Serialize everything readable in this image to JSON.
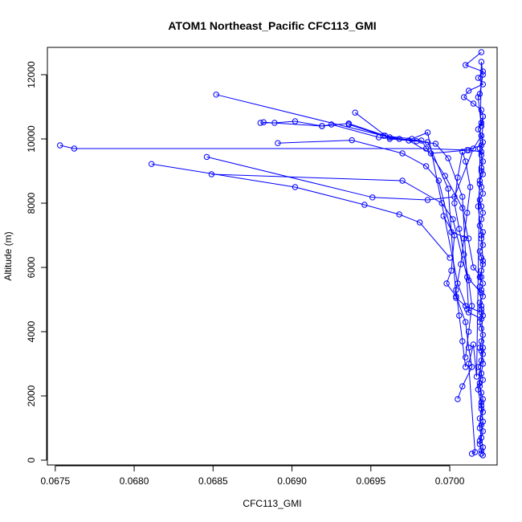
{
  "chart_data": {
    "type": "line",
    "title": "ATOM1 Northeast_Pacific CFC113_GMI",
    "xlabel": "CFC113_GMI",
    "ylabel": "Altitude (m)",
    "xlim": [
      0.06745,
      0.0703
    ],
    "ylim": [
      -150,
      12850
    ],
    "xticks": [
      0.0675,
      0.068,
      0.0685,
      0.069,
      0.0695,
      0.07
    ],
    "xtick_labels": [
      "0.0675",
      "0.0680",
      "0.0685",
      "0.0690",
      "0.0695",
      "0.0700"
    ],
    "yticks": [
      0,
      2000,
      4000,
      6000,
      8000,
      10000,
      12000
    ],
    "ytick_labels": [
      "0",
      "2000",
      "4000",
      "6000",
      "8000",
      "10000",
      "12000"
    ],
    "grid": false,
    "legend": "none",
    "series_color": "#0000ff",
    "marker": "open-circle",
    "series": [
      {
        "x": [
          0.07021,
          0.0702,
          0.07019,
          0.0702,
          0.07021,
          0.0702,
          0.07019,
          0.07021,
          0.0702,
          0.07021,
          0.0702,
          0.07019,
          0.07021,
          0.0702,
          0.07018,
          0.0702,
          0.07021,
          0.07019,
          0.0702,
          0.07021,
          0.0702,
          0.07019,
          0.07021,
          0.0702,
          0.07019,
          0.07021,
          0.0702,
          0.07021,
          0.07019,
          0.0702,
          0.07021,
          0.0702,
          0.07019,
          0.07021,
          0.0702,
          0.07021,
          0.07019,
          0.0702,
          0.07021,
          0.0702,
          0.07019,
          0.07021,
          0.0702,
          0.07019,
          0.07021,
          0.0702,
          0.07021,
          0.0702,
          0.07019,
          0.07021,
          0.0702,
          0.07018,
          0.0702,
          0.07021,
          0.0702,
          0.07015,
          0.07009,
          0.07012,
          0.07021,
          0.07018,
          0.07021,
          0.0701,
          0.0702
        ],
        "y": [
          150,
          300,
          500,
          700,
          900,
          1100,
          1300,
          1500,
          1700,
          1900,
          2100,
          2300,
          2500,
          2700,
          2900,
          3100,
          3300,
          3500,
          3700,
          3900,
          4100,
          4300,
          4500,
          4700,
          4900,
          5100,
          5300,
          5500,
          5700,
          5900,
          6100,
          6300,
          6500,
          6700,
          6900,
          7100,
          7300,
          7500,
          7700,
          7900,
          8100,
          8300,
          8500,
          8700,
          8900,
          9100,
          9300,
          9500,
          9700,
          9900,
          10100,
          10300,
          10500,
          10700,
          10900,
          11100,
          11300,
          11500,
          11700,
          11900,
          12100,
          12300,
          12700
        ]
      },
      {
        "x": [
          0.07014,
          0.07016,
          0.07012,
          0.07015,
          0.07017,
          0.0702,
          0.07021,
          0.07019,
          0.07018,
          0.0702,
          0.07021,
          0.0702,
          0.07019,
          0.07018,
          0.0702,
          0.07021,
          0.07019,
          0.0702,
          0.07021,
          0.07018,
          0.0702,
          0.07019,
          0.07021,
          0.0702,
          0.07019,
          0.07021,
          0.0702,
          0.07019,
          0.07021,
          0.0702
        ],
        "y": [
          200,
          250,
          3000,
          3600,
          2600,
          12400,
          12000,
          11400,
          11300,
          10400,
          10700,
          9000,
          8600,
          7900,
          7000,
          6200,
          5400,
          4800,
          3500,
          2200,
          1600,
          1000,
          400,
          200,
          600,
          1200,
          1800,
          2400,
          3000,
          3400
        ]
      },
      {
        "x": [
          0.0701,
          0.07008,
          0.07006,
          0.07004,
          0.07007,
          0.07009,
          0.07011,
          0.07013,
          0.0701,
          0.07008,
          0.07005,
          0.07003,
          0.07006,
          0.07009,
          0.07012,
          0.07014,
          0.07012,
          0.0701
        ],
        "y": [
          2900,
          3700,
          4500,
          5300,
          6100,
          6900,
          7700,
          8500,
          9300,
          9600,
          8800,
          8000,
          7200,
          6400,
          5600,
          4800,
          4000,
          3200
        ]
      },
      {
        "x": [
          0.06753,
          0.06762,
          0.06985,
          0.07012,
          0.0702
        ],
        "y": [
          9800,
          9700,
          9700,
          9650,
          9600
        ]
      },
      {
        "x": [
          0.06811,
          0.06902,
          0.06946,
          0.06968,
          0.06981,
          0.07
        ],
        "y": [
          9220,
          8500,
          7950,
          7650,
          7400,
          6300
        ]
      },
      {
        "x": [
          0.06846,
          0.06951,
          0.06986,
          0.07003,
          0.07015,
          0.0702
        ],
        "y": [
          9440,
          8180,
          8100,
          8200,
          9700,
          10100
        ]
      },
      {
        "x": [
          0.06849,
          0.0697,
          0.06995,
          0.07002,
          0.07011,
          0.0702
        ],
        "y": [
          8900,
          8700,
          8000,
          7500,
          5700,
          5200
        ]
      },
      {
        "x": [
          0.06852,
          0.06962,
          0.06991,
          0.06999,
          0.07008,
          0.07012,
          0.0702
        ],
        "y": [
          11380,
          10050,
          9850,
          9400,
          8200,
          4600,
          4400
        ]
      },
      {
        "x": [
          0.0688,
          0.06889,
          0.06902,
          0.06919,
          0.06936,
          0.06959,
          0.06974,
          0.06988,
          0.07011,
          0.0702
        ],
        "y": [
          10500,
          10500,
          10550,
          10400,
          10480,
          10100,
          9950,
          9550,
          9650,
          9800
        ]
      },
      {
        "x": [
          0.06882,
          0.06919,
          0.06925,
          0.06955,
          0.06968,
          0.06982,
          0.06997,
          0.07008,
          0.07015,
          0.0702
        ],
        "y": [
          10520,
          10400,
          10450,
          10050,
          10000,
          9950,
          8850,
          7850,
          6000,
          5700
        ]
      },
      {
        "x": [
          0.06891,
          0.06938,
          0.0697,
          0.06985,
          0.06993,
          0.07001,
          0.07012
        ],
        "y": [
          9870,
          9960,
          9550,
          9150,
          8700,
          7100,
          6900
        ]
      },
      {
        "x": [
          0.0694,
          0.06962,
          0.06979,
          0.06986,
          0.06999,
          0.07004,
          0.0701,
          0.0702
        ],
        "y": [
          10820,
          10000,
          9930,
          9900,
          8450,
          5050,
          4800,
          4600
        ]
      },
      {
        "x": [
          0.06936,
          0.06958,
          0.06976,
          0.06986,
          0.07005,
          0.07011
        ],
        "y": [
          10450,
          10100,
          10000,
          10200,
          5500,
          4700
        ]
      },
      {
        "x": [
          0.06996,
          0.07003,
          0.07001,
          0.06998,
          0.07004,
          0.0701,
          0.07012,
          0.07014,
          0.07008,
          0.07005
        ],
        "y": [
          7600,
          7000,
          5900,
          5500,
          5100,
          4300,
          3500,
          2900,
          2300,
          1900
        ]
      }
    ]
  }
}
